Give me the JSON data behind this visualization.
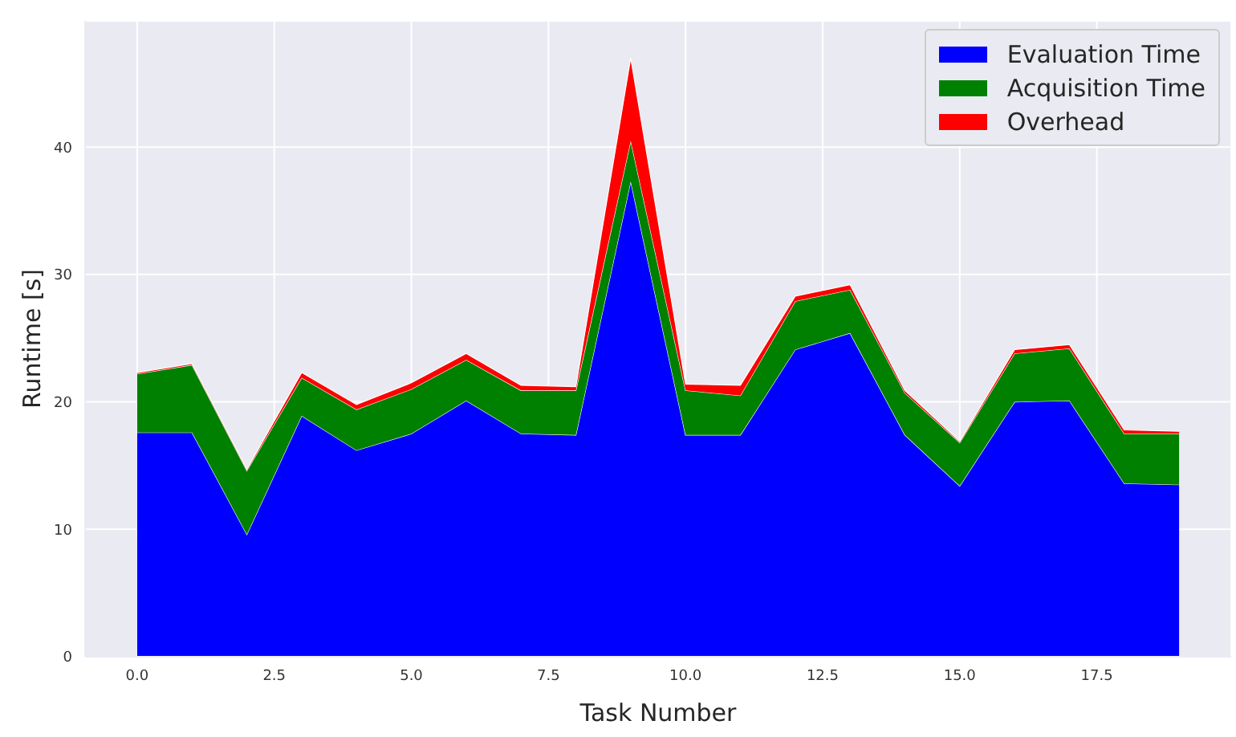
{
  "chart_data": {
    "type": "area",
    "stacked": true,
    "xlabel": "Task Number",
    "ylabel": "Runtime [s]",
    "x": [
      0,
      1,
      2,
      3,
      4,
      5,
      6,
      7,
      8,
      9,
      10,
      11,
      12,
      13,
      14,
      15,
      16,
      17,
      18,
      19
    ],
    "series": [
      {
        "name": "Evaluation Time",
        "color": "#0000ff",
        "values": [
          17.6,
          17.6,
          9.6,
          18.9,
          16.2,
          17.5,
          20.1,
          17.5,
          17.4,
          37.3,
          17.4,
          17.4,
          24.1,
          25.4,
          17.4,
          13.4,
          20.0,
          20.1,
          13.6,
          13.5
        ]
      },
      {
        "name": "Acquisition Time",
        "color": "#008000",
        "values": [
          4.6,
          5.3,
          5.0,
          3.0,
          3.2,
          3.5,
          3.2,
          3.4,
          3.5,
          3.2,
          3.5,
          3.1,
          3.8,
          3.4,
          3.3,
          3.4,
          3.8,
          4.1,
          3.9,
          4.0
        ]
      },
      {
        "name": "Overhead",
        "color": "#ff0000",
        "values": [
          0.1,
          0.1,
          0.1,
          0.4,
          0.4,
          0.5,
          0.5,
          0.4,
          0.3,
          6.5,
          0.5,
          0.8,
          0.4,
          0.4,
          0.2,
          0.1,
          0.3,
          0.3,
          0.3,
          0.2
        ]
      }
    ],
    "xlim": [
      -0.95,
      19.95
    ],
    "xticks": [
      {
        "value": 0,
        "label": "0.0"
      },
      {
        "value": 2.5,
        "label": "2.5"
      },
      {
        "value": 5,
        "label": "5.0"
      },
      {
        "value": 7.5,
        "label": "7.5"
      },
      {
        "value": 10,
        "label": "10.0"
      },
      {
        "value": 12.5,
        "label": "12.5"
      },
      {
        "value": 15,
        "label": "15.0"
      },
      {
        "value": 17.5,
        "label": "17.5"
      }
    ],
    "ylim": [
      0,
      49.9
    ],
    "yticks": [
      0,
      10,
      20,
      30,
      40
    ],
    "grid": true,
    "legend": "top right"
  }
}
